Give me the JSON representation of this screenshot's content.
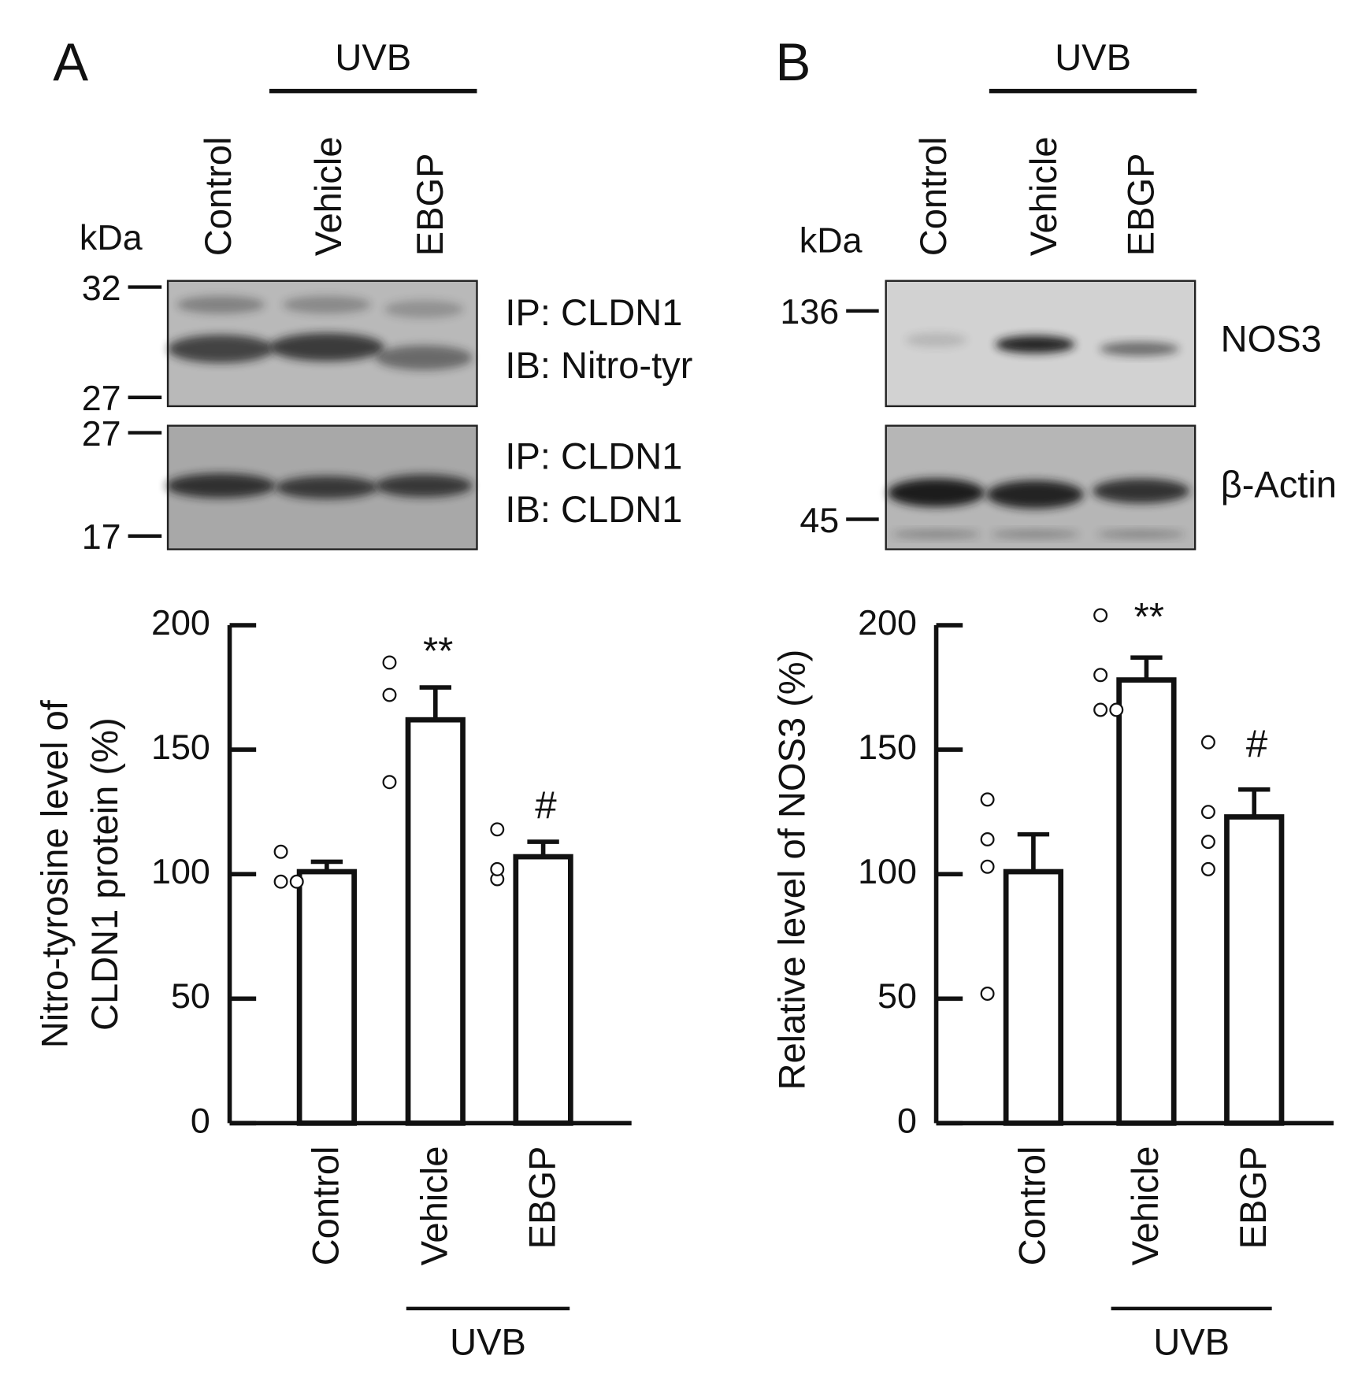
{
  "panels": [
    {
      "letter": "A",
      "group_label": "UVB",
      "lanes": [
        "Control",
        "Vehicle",
        "EBGP"
      ],
      "kda": "kDa",
      "markers": [
        32,
        27,
        27,
        17
      ],
      "blot_labels": [
        [
          "IP: CLDN1",
          "IB: Nitro-tyr"
        ],
        [
          "IP: CLDN1",
          "IB: CLDN1"
        ]
      ]
    },
    {
      "letter": "B",
      "group_label": "UVB",
      "lanes": [
        "Control",
        "Vehicle",
        "EBGP"
      ],
      "kda": "kDa",
      "markers": [
        136,
        45
      ],
      "blot_labels": [
        [
          "NOS3"
        ],
        [
          "β-Actin"
        ]
      ]
    }
  ],
  "chart_data": [
    {
      "type": "bar",
      "ylabel": [
        "Nitro-tyrosine level of",
        "CLDN1 protein (%)"
      ],
      "categories": [
        "Control",
        "Vehicle",
        "EBGP"
      ],
      "values": [
        101,
        162,
        107
      ],
      "errors": [
        4,
        13,
        6
      ],
      "points": [
        [
          109,
          97,
          97
        ],
        [
          185,
          172,
          137
        ],
        [
          118,
          98,
          102
        ]
      ],
      "annotations": [
        null,
        "**",
        "#"
      ],
      "group_label": "UVB",
      "color": "#ffffff",
      "ylim": [
        0,
        200
      ],
      "yticks": [
        0,
        50,
        100,
        150,
        200
      ]
    },
    {
      "type": "bar",
      "ylabel": [
        "Relative level of NOS3 (%)"
      ],
      "categories": [
        "Control",
        "Vehicle",
        "EBGP"
      ],
      "values": [
        101,
        178,
        123
      ],
      "errors": [
        15,
        9,
        11
      ],
      "points": [
        [
          130,
          114,
          103,
          52
        ],
        [
          204,
          180,
          166,
          166
        ],
        [
          153,
          125,
          113,
          102
        ]
      ],
      "annotations": [
        null,
        "**",
        "#"
      ],
      "group_label": "UVB",
      "color": "#ffffff",
      "ylim": [
        0,
        200
      ],
      "yticks": [
        0,
        50,
        100,
        150,
        200
      ]
    }
  ]
}
